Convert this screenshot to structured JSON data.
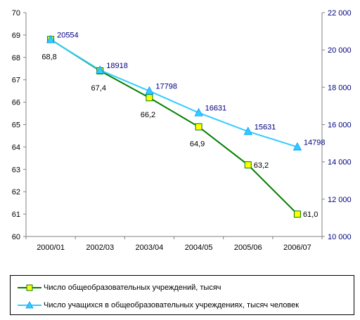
{
  "chart_data": {
    "type": "line",
    "categories": [
      "2000/01",
      "2002/03",
      "2003/04",
      "2004/05",
      "2005/06",
      "2006/07"
    ],
    "left_axis": {
      "min": 60,
      "max": 70,
      "step": 1,
      "ticks": [
        "60",
        "61",
        "62",
        "63",
        "64",
        "65",
        "66",
        "67",
        "68",
        "69",
        "70"
      ]
    },
    "right_axis": {
      "min": 10000,
      "max": 22000,
      "step": 2000,
      "ticks": [
        "10 000",
        "12 000",
        "14 000",
        "16 000",
        "18 000",
        "20 000",
        "22 000"
      ]
    },
    "grid": false,
    "legend_position": "bottom",
    "series": [
      {
        "name": "Число общеобразовательных учреждений, тысяч",
        "axis": "left",
        "color": "#007F00",
        "marker": "square",
        "marker_fill": "#FFFF00",
        "values": [
          68.8,
          67.4,
          66.2,
          64.9,
          63.2,
          61.0
        ],
        "labels": [
          "68,8",
          "67,4",
          "66,2",
          "64,9",
          "63,2",
          "61,0"
        ]
      },
      {
        "name": "Число учащихся в общеобразовательных учреждениях, тысяч человек",
        "axis": "right",
        "color": "#33CCFF",
        "marker": "triangle",
        "marker_fill": "#33CCFF",
        "values": [
          20554,
          18918,
          17798,
          16631,
          15631,
          14798
        ],
        "labels": [
          "20554",
          "18918",
          "17798",
          "16631",
          "15631",
          "14798"
        ]
      }
    ]
  },
  "legend": {
    "series_0_label": "Число общеобразовательных учреждений, тысяч",
    "series_1_label": "Число учащихся в общеобразовательных учреждениях, тысяч человек"
  },
  "colors": {
    "axis": "#808080",
    "right_tick_text": "#000080",
    "right_value_label": "#000080",
    "left_value_label": "#000000"
  }
}
